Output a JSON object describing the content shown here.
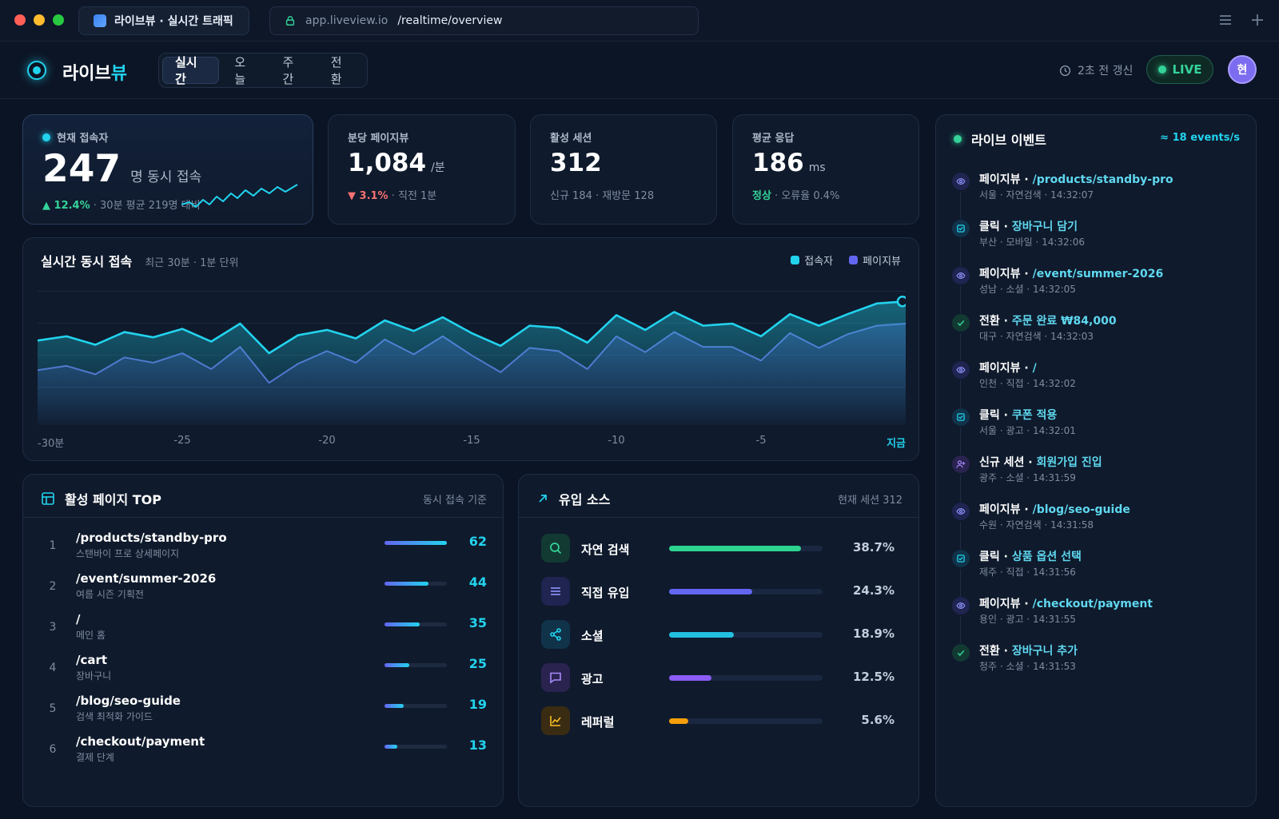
{
  "browser": {
    "tab_title": "라이브뷰 · 실시간 트래픽",
    "url_host": "app.liveview.io",
    "url_path": "/realtime/overview"
  },
  "header": {
    "brand_main": "라이브",
    "brand_accent": "뷰",
    "tabs": [
      {
        "label": "실시간",
        "active": true
      },
      {
        "label": "오늘",
        "active": false
      },
      {
        "label": "주간",
        "active": false
      },
      {
        "label": "전환",
        "active": false
      }
    ],
    "refresh_text": "2초 전 갱신",
    "live_label": "LIVE",
    "avatar_initial": "현"
  },
  "kpis": {
    "current_users": {
      "label": "현재 접속자",
      "value": "247",
      "unit": "명 동시 접속",
      "change": "▲ 12.4%",
      "compare": "· 30분 평균 219명 대비"
    },
    "pageviews": {
      "label": "분당 페이지뷰",
      "value": "1,084",
      "unit": "/분",
      "change": "▼ 3.1%",
      "compare": "· 직전 1분"
    },
    "sessions": {
      "label": "활성 세션",
      "value": "312",
      "sub": "신규 184 · 재방문 128"
    },
    "response": {
      "label": "평균 응답",
      "value": "186",
      "unit": "ms",
      "status": "정상",
      "sub": "· 오류율 0.4%"
    }
  },
  "chart_section": {
    "title": "실시간 동시 접속",
    "subtitle": "최근 30분 · 1분 단위",
    "legend_users": "접속자",
    "legend_pageviews": "페이지뷰",
    "x_labels": [
      "-30분",
      "-25",
      "-20",
      "-15",
      "-10",
      "-5",
      "지금"
    ]
  },
  "chart_data": {
    "type": "area",
    "x": [
      -30,
      -29,
      -28,
      -27,
      -26,
      -25,
      -24,
      -23,
      -22,
      -21,
      -20,
      -19,
      -18,
      -17,
      -16,
      -15,
      -14,
      -13,
      -12,
      -11,
      -10,
      -9,
      -8,
      -7,
      -6,
      -5,
      -4,
      -3,
      -2,
      -1,
      0
    ],
    "series": [
      {
        "name": "접속자",
        "color": "#22d3ee",
        "values": [
          210,
          214,
          206,
          218,
          213,
          221,
          209,
          226,
          198,
          215,
          220,
          212,
          229,
          219,
          232,
          217,
          205,
          224,
          222,
          208,
          234,
          220,
          237,
          224,
          226,
          214,
          235,
          224,
          235,
          245,
          247
        ]
      },
      {
        "name": "페이지뷰",
        "color": "#6366f1",
        "values": [
          182,
          186,
          178,
          194,
          189,
          198,
          183,
          204,
          170,
          188,
          200,
          189,
          211,
          197,
          214,
          196,
          180,
          203,
          200,
          183,
          214,
          199,
          218,
          204,
          204,
          191,
          217,
          203,
          216,
          224,
          226
        ]
      }
    ],
    "ylim": [
      130,
      260
    ],
    "grid": true,
    "legend": "top-right"
  },
  "top_pages": {
    "title": "활성 페이지 TOP",
    "note": "동시 접속 기준",
    "max": 62,
    "rows": [
      {
        "rank": "1",
        "path": "/products/standby-pro",
        "desc": "스탠바이 프로 상세페이지",
        "count": "62",
        "value": 62
      },
      {
        "rank": "2",
        "path": "/event/summer-2026",
        "desc": "여름 시즌 기획전",
        "count": "44",
        "value": 44
      },
      {
        "rank": "3",
        "path": "/",
        "desc": "메인 홈",
        "count": "35",
        "value": 35
      },
      {
        "rank": "4",
        "path": "/cart",
        "desc": "장바구니",
        "count": "25",
        "value": 25
      },
      {
        "rank": "5",
        "path": "/blog/seo-guide",
        "desc": "검색 최적화 가이드",
        "count": "19",
        "value": 19
      },
      {
        "rank": "6",
        "path": "/checkout/payment",
        "desc": "결제 단계",
        "count": "13",
        "value": 13
      }
    ]
  },
  "sources": {
    "title": "유입 소스",
    "note": "현재 세션 312",
    "rows": [
      {
        "name": "자연 검색",
        "pct": "38.7%",
        "value": 38.7,
        "icon": "search-icon",
        "color": "#2dd48f",
        "bg": "#123a33",
        "fg": "#34d399"
      },
      {
        "name": "직접 유입",
        "pct": "24.3%",
        "value": 24.3,
        "icon": "menu-icon",
        "color": "#6366f1",
        "bg": "#1f2450",
        "fg": "#8b8ff5"
      },
      {
        "name": "소셜",
        "pct": "18.9%",
        "value": 18.9,
        "icon": "share-icon",
        "color": "#22bfe0",
        "bg": "#10334a",
        "fg": "#22d3ee"
      },
      {
        "name": "광고",
        "pct": "12.5%",
        "value": 12.5,
        "icon": "message-icon",
        "color": "#8b5cf6",
        "bg": "#2a2350",
        "fg": "#a78bfa"
      },
      {
        "name": "레퍼럴",
        "pct": "5.6%",
        "value": 5.6,
        "icon": "chart-icon",
        "color": "#f59e0b",
        "bg": "#3a2c12",
        "fg": "#fbbf24"
      }
    ]
  },
  "live_events": {
    "title": "라이브 이벤트",
    "rate": "≈ 18 events/s",
    "items": [
      {
        "kind": "페이지뷰 · ",
        "target": "/products/standby-pro",
        "meta": "서울 · 자연검색 · 14:32:07",
        "icon": "eye-icon",
        "tone": "indigo"
      },
      {
        "kind": "클릭 · ",
        "target": "장바구니 담기",
        "meta": "부산 · 모바일 · 14:32:06",
        "icon": "checkbox-icon",
        "tone": "cyan"
      },
      {
        "kind": "페이지뷰 · ",
        "target": "/event/summer-2026",
        "meta": "성남 · 소셜 · 14:32:05",
        "icon": "eye-icon",
        "tone": "indigo"
      },
      {
        "kind": "전환 · ",
        "target": "주문 완료 ₩84,000",
        "meta": "대구 · 자연검색 · 14:32:03",
        "icon": "check-icon",
        "tone": "green"
      },
      {
        "kind": "페이지뷰 · ",
        "target": "/",
        "meta": "인천 · 직접 · 14:32:02",
        "icon": "eye-icon",
        "tone": "indigo"
      },
      {
        "kind": "클릭 · ",
        "target": "쿠폰 적용",
        "meta": "서울 · 광고 · 14:32:01",
        "icon": "checkbox-icon",
        "tone": "cyan"
      },
      {
        "kind": "신규 세션 · ",
        "target": "회원가입 진입",
        "meta": "광주 · 소셜 · 14:31:59",
        "icon": "user-plus-icon",
        "tone": "violet"
      },
      {
        "kind": "페이지뷰 · ",
        "target": "/blog/seo-guide",
        "meta": "수원 · 자연검색 · 14:31:58",
        "icon": "eye-icon",
        "tone": "indigo"
      },
      {
        "kind": "클릭 · ",
        "target": "상품 옵션 선택",
        "meta": "제주 · 직접 · 14:31:56",
        "icon": "checkbox-icon",
        "tone": "cyan"
      },
      {
        "kind": "페이지뷰 · ",
        "target": "/checkout/payment",
        "meta": "용인 · 광고 · 14:31:55",
        "icon": "eye-icon",
        "tone": "indigo"
      },
      {
        "kind": "전환 · ",
        "target": "장바구니 추가",
        "meta": "청주 · 소셜 · 14:31:53",
        "icon": "check-icon",
        "tone": "green"
      }
    ]
  }
}
